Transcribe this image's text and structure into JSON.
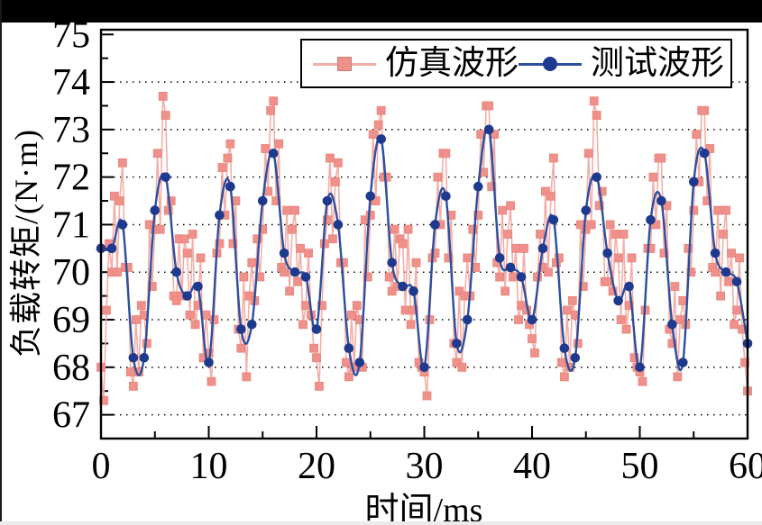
{
  "figure": {
    "background": "#ffffff",
    "top_bar_color": "#000000"
  },
  "chart_data": {
    "type": "line",
    "title": "",
    "xlabel": "时间/ms",
    "ylabel": "负载转矩/(N·m)",
    "xlim": [
      0,
      60
    ],
    "ylim": [
      66.5,
      75.1
    ],
    "grid": "horizontal dotted lines at integers 67-74",
    "gridline_values": [
      67,
      68,
      69,
      70,
      71,
      72,
      73,
      74
    ],
    "x_tick_values": [
      0,
      10,
      20,
      30,
      40,
      50,
      60
    ],
    "x_tick_labels": [
      "0",
      "10",
      "20",
      "30",
      "40",
      "50",
      "60"
    ],
    "x_minor_tick_values": [
      5,
      15,
      25,
      35,
      45,
      55
    ],
    "y_tick_values": [
      67,
      68,
      69,
      70,
      71,
      72,
      73,
      74,
      75
    ],
    "y_tick_labels": [
      "67",
      "68",
      "69",
      "70",
      "71",
      "72",
      "73",
      "74",
      "75"
    ],
    "y_minor_tick_values": [
      67.5,
      68.5,
      69.5,
      70.5,
      71.5,
      72.5,
      73.5,
      74.5
    ],
    "legend_position": "upper center",
    "colors": {
      "sim_line": "#f4aea7",
      "sim_marker": "#ef908a",
      "sim_marker_edge": "#e8837b",
      "test_line": "#2c4f9e",
      "test_marker": "#1d3a8e",
      "axis": "#000000",
      "grid": "#000000"
    },
    "series": [
      {
        "name": "仿真波形",
        "marker": "square",
        "smooth": false,
        "t_start": 0,
        "t_step": 0.25,
        "values": [
          68.0,
          67.3,
          69.2,
          70.6,
          70.0,
          71.6,
          70.0,
          71.5,
          72.3,
          70.1,
          70.1,
          67.9,
          67.6,
          69.0,
          67.9,
          69.3,
          69.1,
          68.5,
          71.0,
          69.7,
          70.9,
          72.5,
          70.9,
          73.7,
          73.3,
          71.3,
          71.5,
          69.5,
          69.4,
          70.7,
          69.5,
          70.7,
          70.4,
          69.1,
          70.8,
          68.9,
          69.3,
          70.3,
          68.2,
          69.1,
          68.3,
          67.7,
          69.0,
          70.4,
          70.6,
          72.2,
          71.2,
          72.4,
          72.7,
          70.6,
          71.5,
          68.8,
          68.4,
          69.9,
          67.8,
          69.5,
          70.2,
          69.4,
          70.7,
          69.9,
          70.9,
          72.6,
          71.7,
          73.4,
          73.6,
          71.5,
          72.7,
          70.1,
          70.0,
          71.3,
          69.6,
          70.9,
          71.3,
          69.8,
          70.5,
          68.9,
          69.3,
          70.4,
          69.1,
          68.4,
          68.2,
          67.6,
          69.3,
          70.6,
          71.1,
          72.4,
          70.7,
          71.9,
          72.3,
          70.2,
          70.2,
          68.1,
          67.8,
          69.1,
          68.0,
          69.3,
          69.0,
          68.0,
          71.1,
          69.9,
          71.2,
          72.9,
          71.5,
          73.1,
          73.4,
          72.0,
          72.0,
          69.9,
          69.6,
          70.9,
          69.7,
          70.7,
          70.6,
          69.2,
          70.9,
          68.9,
          69.2,
          70.2,
          68.1,
          68.0,
          67.9,
          67.4,
          69.0,
          70.3,
          70.4,
          72.0,
          71.0,
          72.5,
          72.5,
          70.3,
          71.2,
          68.5,
          68.1,
          69.6,
          68.0,
          69.5,
          70.3,
          69.5,
          70.9,
          70.1,
          71.2,
          72.9,
          72.1,
          73.5,
          73.5,
          71.8,
          72.9,
          70.2,
          69.9,
          71.3,
          69.6,
          70.8,
          71.4,
          69.9,
          70.5,
          69.0,
          69.3,
          70.5,
          69.2,
          68.9,
          68.6,
          68.3,
          69.9,
          70.8,
          70.1,
          71.7,
          70.0,
          71.6,
          72.4,
          70.2,
          70.3,
          68.1,
          67.8,
          69.2,
          68.0,
          69.4,
          69.1,
          68.5,
          71.0,
          69.7,
          70.9,
          72.5,
          71.0,
          73.6,
          73.3,
          71.4,
          71.7,
          69.8,
          69.8,
          71.0,
          69.6,
          70.8,
          70.3,
          69.0,
          70.8,
          68.8,
          69.3,
          70.3,
          68.2,
          68.0,
          67.9,
          67.7,
          69.2,
          70.5,
          70.5,
          72.0,
          71.0,
          72.4,
          72.4,
          70.4,
          71.4,
          68.8,
          68.5,
          69.7,
          67.8,
          69.0,
          69.4,
          68.9,
          70.5,
          70.0,
          71.3,
          72.9,
          71.9,
          73.4,
          73.4,
          71.5,
          72.6,
          70.1,
          70.0,
          71.3,
          69.5,
          70.8,
          71.3,
          69.8,
          70.4,
          68.9,
          69.2,
          70.3,
          68.8,
          68.1,
          67.5
        ]
      },
      {
        "name": "测试波形",
        "marker": "circle",
        "smooth": true,
        "t_start": 0,
        "t_step": 1,
        "values": [
          70.5,
          70.5,
          71.0,
          68.2,
          68.2,
          71.3,
          72.0,
          70.0,
          69.5,
          69.7,
          68.1,
          71.2,
          71.8,
          68.8,
          68.9,
          71.5,
          72.5,
          70.4,
          70.0,
          69.9,
          68.8,
          71.5,
          71.0,
          68.4,
          68.1,
          71.6,
          72.8,
          70.2,
          69.7,
          69.6,
          68.0,
          71.0,
          71.6,
          68.5,
          69.0,
          71.8,
          73.0,
          70.3,
          70.1,
          69.9,
          69.0,
          70.5,
          71.1,
          68.4,
          68.2,
          71.3,
          72.0,
          70.4,
          69.4,
          69.7,
          68.0,
          71.1,
          71.5,
          68.9,
          68.1,
          71.9,
          72.5,
          70.4,
          70.0,
          69.8,
          68.5
        ]
      }
    ]
  }
}
